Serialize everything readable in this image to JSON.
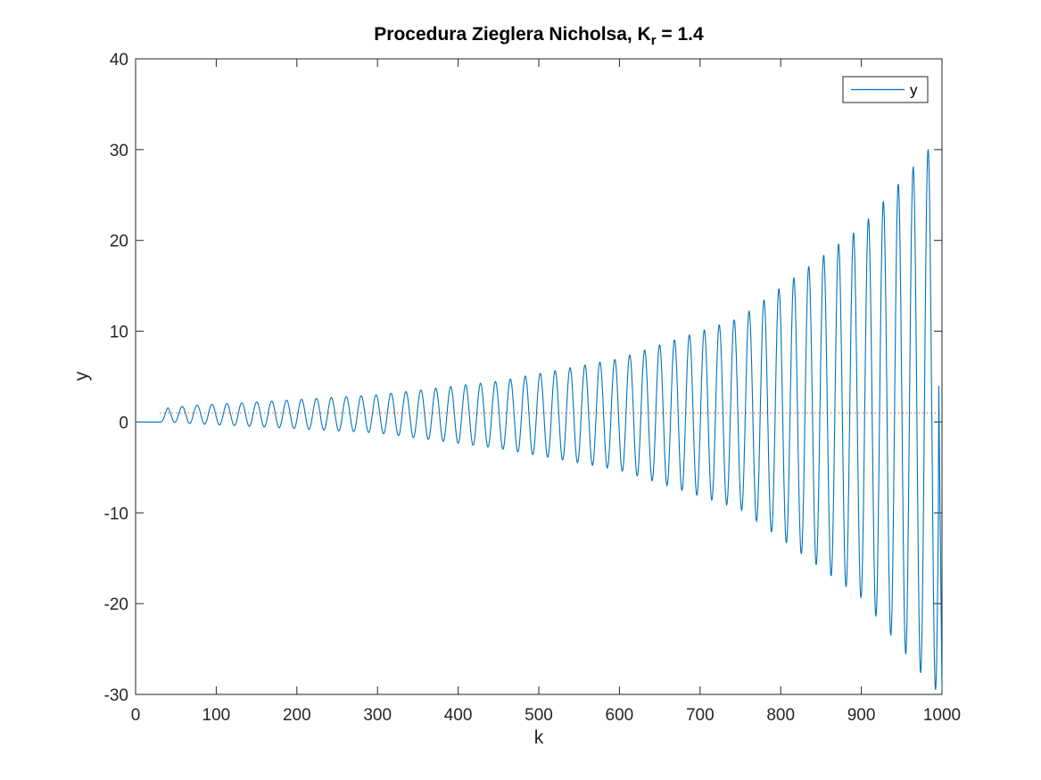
{
  "chart_data": {
    "type": "line",
    "title": {
      "prefix": "Procedura Zieglera Nicholsa, K",
      "subscript": "r",
      "suffix": " =  1.4"
    },
    "xlabel": "k",
    "ylabel": "y",
    "xlim": [
      0,
      1000
    ],
    "ylim": [
      -30,
      40
    ],
    "xticks": [
      0,
      100,
      200,
      300,
      400,
      500,
      600,
      700,
      800,
      900,
      1000
    ],
    "yticks": [
      -30,
      -20,
      -10,
      0,
      10,
      20,
      30,
      40
    ],
    "xtick_labels": [
      "0",
      "100",
      "200",
      "300",
      "400",
      "500",
      "600",
      "700",
      "800",
      "900",
      "1000"
    ],
    "ytick_labels": [
      "-30",
      "-20",
      "-10",
      "0",
      "10",
      "20",
      "30",
      "40"
    ],
    "grid": false,
    "legend": {
      "position": "top-right",
      "entries": [
        "y"
      ]
    },
    "series": [
      {
        "name": "y",
        "color": "#0072BD",
        "description_points": {
          "k": [
            0,
            30,
            40,
            57,
            75,
            150,
            300,
            450,
            600,
            750,
            900,
            990,
            1000
          ],
          "envelope_upper": [
            0,
            0,
            1.6,
            1.7,
            1.85,
            2.2,
            3.0,
            4.5,
            7.0,
            11.5,
            21.5,
            30.8,
            30.8
          ],
          "envelope_lower": [
            0,
            0,
            0,
            -0.1,
            -0.2,
            -0.5,
            -1.2,
            -2.9,
            -5.3,
            -9.6,
            -19.4,
            -29.5,
            -29.5
          ],
          "period_k": 18.5,
          "start_k": 30
        }
      },
      {
        "name": "setpoint",
        "color": "#D95319",
        "style": "dotted",
        "x": [
          30,
          1000
        ],
        "y": [
          1,
          1
        ]
      }
    ]
  }
}
